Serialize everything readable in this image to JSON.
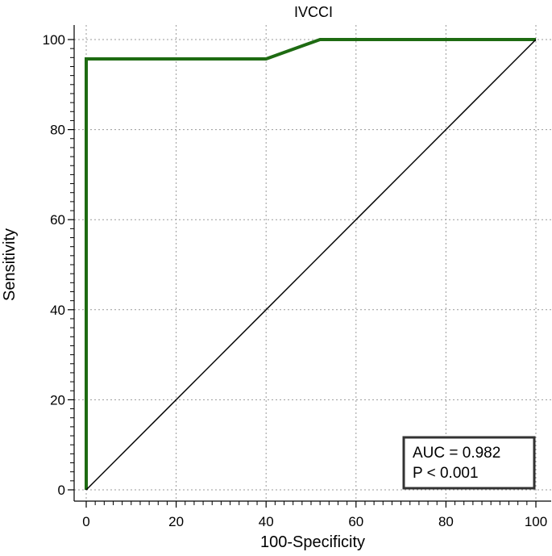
{
  "chart_data": {
    "type": "line",
    "title": "IVCCI",
    "xlabel": "100-Specificity",
    "ylabel": "Sensitivity",
    "xlim": [
      0,
      100
    ],
    "ylim": [
      0,
      100
    ],
    "x_ticks": [
      0,
      20,
      40,
      60,
      80,
      100
    ],
    "y_ticks": [
      0,
      20,
      40,
      60,
      80,
      100
    ],
    "x_tick_labels": [
      "0",
      "20",
      "40",
      "60",
      "80",
      "100"
    ],
    "y_tick_labels": [
      "0",
      "20",
      "40",
      "60",
      "80",
      "100"
    ],
    "grid": true,
    "series": [
      {
        "x": [
          0,
          0,
          40,
          52,
          100
        ],
        "y": [
          0,
          95.7,
          95.7,
          100,
          100
        ],
        "color": "#1e6b12"
      },
      {
        "x": [
          0,
          100
        ],
        "y": [
          0,
          100
        ],
        "color": "#000000"
      }
    ],
    "annotations": [
      "AUC = 0.982",
      "P < 0.001"
    ],
    "annotation_placement": "bottom-right"
  }
}
